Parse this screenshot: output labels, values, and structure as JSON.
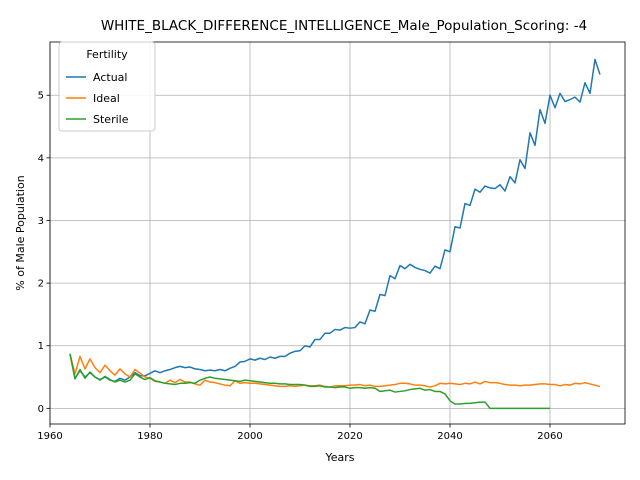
{
  "chart_data": {
    "type": "line",
    "title": "WHITE_BLACK_DIFFERENCE_INTELLIGENCE_Male_Population_Scoring: -4",
    "xlabel": "Years",
    "ylabel": "% of Male Population",
    "xlim": [
      1960,
      2075
    ],
    "ylim": [
      -0.25,
      5.85
    ],
    "xticks": [
      1960,
      1980,
      2000,
      2020,
      2040,
      2060
    ],
    "yticks": [
      0,
      1,
      2,
      3,
      4,
      5
    ],
    "grid": true,
    "legend": {
      "title": "Fertility",
      "placement": "top-left"
    },
    "series": [
      {
        "name": "Actual",
        "color": "#1f77b4",
        "points": [
          [
            1964,
            0.87
          ],
          [
            1965,
            0.48
          ],
          [
            1966,
            0.6
          ],
          [
            1967,
            0.5
          ],
          [
            1968,
            0.57
          ],
          [
            1969,
            0.5
          ],
          [
            1970,
            0.46
          ],
          [
            1971,
            0.5
          ],
          [
            1972,
            0.45
          ],
          [
            1973,
            0.43
          ],
          [
            1974,
            0.48
          ],
          [
            1975,
            0.45
          ],
          [
            1976,
            0.5
          ],
          [
            1977,
            0.57
          ],
          [
            1978,
            0.52
          ],
          [
            1979,
            0.52
          ],
          [
            1980,
            0.56
          ],
          [
            1981,
            0.6
          ],
          [
            1982,
            0.57
          ],
          [
            1983,
            0.6
          ],
          [
            1984,
            0.62
          ],
          [
            1985,
            0.65
          ],
          [
            1986,
            0.67
          ],
          [
            1987,
            0.65
          ],
          [
            1988,
            0.66
          ],
          [
            1989,
            0.63
          ],
          [
            1990,
            0.62
          ],
          [
            1991,
            0.6
          ],
          [
            1992,
            0.61
          ],
          [
            1993,
            0.6
          ],
          [
            1994,
            0.62
          ],
          [
            1995,
            0.6
          ],
          [
            1996,
            0.64
          ],
          [
            1997,
            0.67
          ],
          [
            1998,
            0.74
          ],
          [
            1999,
            0.75
          ],
          [
            2000,
            0.79
          ],
          [
            2001,
            0.77
          ],
          [
            2002,
            0.8
          ],
          [
            2003,
            0.78
          ],
          [
            2004,
            0.82
          ],
          [
            2005,
            0.8
          ],
          [
            2006,
            0.83
          ],
          [
            2007,
            0.83
          ],
          [
            2008,
            0.88
          ],
          [
            2009,
            0.91
          ],
          [
            2010,
            0.92
          ],
          [
            2011,
            1.0
          ],
          [
            2012,
            0.98
          ],
          [
            2013,
            1.1
          ],
          [
            2014,
            1.1
          ],
          [
            2015,
            1.2
          ],
          [
            2016,
            1.2
          ],
          [
            2017,
            1.26
          ],
          [
            2018,
            1.25
          ],
          [
            2019,
            1.29
          ],
          [
            2020,
            1.28
          ],
          [
            2021,
            1.29
          ],
          [
            2022,
            1.38
          ],
          [
            2023,
            1.35
          ],
          [
            2024,
            1.57
          ],
          [
            2025,
            1.55
          ],
          [
            2026,
            1.82
          ],
          [
            2027,
            1.8
          ],
          [
            2028,
            2.12
          ],
          [
            2029,
            2.07
          ],
          [
            2030,
            2.28
          ],
          [
            2031,
            2.23
          ],
          [
            2032,
            2.3
          ],
          [
            2033,
            2.25
          ],
          [
            2034,
            2.22
          ],
          [
            2035,
            2.2
          ],
          [
            2036,
            2.16
          ],
          [
            2037,
            2.27
          ],
          [
            2038,
            2.23
          ],
          [
            2039,
            2.53
          ],
          [
            2040,
            2.5
          ],
          [
            2041,
            2.9
          ],
          [
            2042,
            2.88
          ],
          [
            2043,
            3.27
          ],
          [
            2044,
            3.24
          ],
          [
            2045,
            3.5
          ],
          [
            2046,
            3.45
          ],
          [
            2047,
            3.55
          ],
          [
            2048,
            3.52
          ],
          [
            2049,
            3.51
          ],
          [
            2050,
            3.57
          ],
          [
            2051,
            3.47
          ],
          [
            2052,
            3.7
          ],
          [
            2053,
            3.6
          ],
          [
            2054,
            3.97
          ],
          [
            2055,
            3.83
          ],
          [
            2056,
            4.4
          ],
          [
            2057,
            4.2
          ],
          [
            2058,
            4.77
          ],
          [
            2059,
            4.55
          ],
          [
            2060,
            5.0
          ],
          [
            2061,
            4.8
          ],
          [
            2062,
            5.03
          ],
          [
            2063,
            4.9
          ],
          [
            2064,
            4.93
          ],
          [
            2065,
            4.97
          ],
          [
            2066,
            4.89
          ],
          [
            2067,
            5.2
          ],
          [
            2068,
            5.03
          ],
          [
            2069,
            5.57
          ],
          [
            2070,
            5.33
          ]
        ]
      },
      {
        "name": "Ideal",
        "color": "#ff7f0e",
        "points": [
          [
            1964,
            0.87
          ],
          [
            1965,
            0.55
          ],
          [
            1966,
            0.83
          ],
          [
            1967,
            0.63
          ],
          [
            1968,
            0.79
          ],
          [
            1969,
            0.65
          ],
          [
            1970,
            0.57
          ],
          [
            1971,
            0.69
          ],
          [
            1972,
            0.6
          ],
          [
            1973,
            0.53
          ],
          [
            1974,
            0.63
          ],
          [
            1975,
            0.55
          ],
          [
            1976,
            0.5
          ],
          [
            1977,
            0.62
          ],
          [
            1978,
            0.56
          ],
          [
            1979,
            0.5
          ],
          [
            1980,
            0.48
          ],
          [
            1981,
            0.43
          ],
          [
            1982,
            0.42
          ],
          [
            1983,
            0.4
          ],
          [
            1984,
            0.45
          ],
          [
            1985,
            0.41
          ],
          [
            1986,
            0.46
          ],
          [
            1987,
            0.42
          ],
          [
            1988,
            0.42
          ],
          [
            1989,
            0.39
          ],
          [
            1990,
            0.37
          ],
          [
            1991,
            0.45
          ],
          [
            1992,
            0.42
          ],
          [
            1993,
            0.41
          ],
          [
            1994,
            0.39
          ],
          [
            1995,
            0.37
          ],
          [
            1996,
            0.36
          ],
          [
            1997,
            0.44
          ],
          [
            1998,
            0.4
          ],
          [
            1999,
            0.41
          ],
          [
            2000,
            0.4
          ],
          [
            2001,
            0.4
          ],
          [
            2002,
            0.39
          ],
          [
            2003,
            0.38
          ],
          [
            2004,
            0.37
          ],
          [
            2005,
            0.36
          ],
          [
            2006,
            0.35
          ],
          [
            2007,
            0.35
          ],
          [
            2008,
            0.36
          ],
          [
            2009,
            0.35
          ],
          [
            2010,
            0.36
          ],
          [
            2011,
            0.37
          ],
          [
            2012,
            0.36
          ],
          [
            2013,
            0.36
          ],
          [
            2014,
            0.37
          ],
          [
            2015,
            0.35
          ],
          [
            2016,
            0.34
          ],
          [
            2017,
            0.36
          ],
          [
            2018,
            0.36
          ],
          [
            2019,
            0.36
          ],
          [
            2020,
            0.37
          ],
          [
            2021,
            0.37
          ],
          [
            2022,
            0.38
          ],
          [
            2023,
            0.36
          ],
          [
            2024,
            0.37
          ],
          [
            2025,
            0.35
          ],
          [
            2026,
            0.35
          ],
          [
            2027,
            0.36
          ],
          [
            2028,
            0.37
          ],
          [
            2029,
            0.38
          ],
          [
            2030,
            0.4
          ],
          [
            2031,
            0.4
          ],
          [
            2032,
            0.39
          ],
          [
            2033,
            0.37
          ],
          [
            2034,
            0.37
          ],
          [
            2035,
            0.36
          ],
          [
            2036,
            0.34
          ],
          [
            2037,
            0.36
          ],
          [
            2038,
            0.4
          ],
          [
            2039,
            0.39
          ],
          [
            2040,
            0.4
          ],
          [
            2041,
            0.39
          ],
          [
            2042,
            0.38
          ],
          [
            2043,
            0.4
          ],
          [
            2044,
            0.39
          ],
          [
            2045,
            0.42
          ],
          [
            2046,
            0.39
          ],
          [
            2047,
            0.43
          ],
          [
            2048,
            0.41
          ],
          [
            2049,
            0.41
          ],
          [
            2050,
            0.4
          ],
          [
            2051,
            0.38
          ],
          [
            2052,
            0.37
          ],
          [
            2053,
            0.37
          ],
          [
            2054,
            0.36
          ],
          [
            2055,
            0.37
          ],
          [
            2056,
            0.37
          ],
          [
            2057,
            0.38
          ],
          [
            2058,
            0.39
          ],
          [
            2059,
            0.39
          ],
          [
            2060,
            0.38
          ],
          [
            2061,
            0.38
          ],
          [
            2062,
            0.36
          ],
          [
            2063,
            0.38
          ],
          [
            2064,
            0.37
          ],
          [
            2065,
            0.4
          ],
          [
            2066,
            0.39
          ],
          [
            2067,
            0.41
          ],
          [
            2068,
            0.39
          ],
          [
            2069,
            0.37
          ],
          [
            2070,
            0.35
          ]
        ]
      },
      {
        "name": "Sterile",
        "color": "#2ca02c",
        "points": [
          [
            1964,
            0.87
          ],
          [
            1965,
            0.47
          ],
          [
            1966,
            0.62
          ],
          [
            1967,
            0.48
          ],
          [
            1968,
            0.58
          ],
          [
            1969,
            0.5
          ],
          [
            1970,
            0.45
          ],
          [
            1971,
            0.51
          ],
          [
            1972,
            0.46
          ],
          [
            1973,
            0.42
          ],
          [
            1974,
            0.45
          ],
          [
            1975,
            0.42
          ],
          [
            1976,
            0.45
          ],
          [
            1977,
            0.55
          ],
          [
            1978,
            0.5
          ],
          [
            1979,
            0.46
          ],
          [
            1980,
            0.49
          ],
          [
            1981,
            0.44
          ],
          [
            1982,
            0.42
          ],
          [
            1983,
            0.4
          ],
          [
            1984,
            0.39
          ],
          [
            1985,
            0.38
          ],
          [
            1986,
            0.4
          ],
          [
            1987,
            0.4
          ],
          [
            1988,
            0.41
          ],
          [
            1989,
            0.4
          ],
          [
            1990,
            0.45
          ],
          [
            1991,
            0.48
          ],
          [
            1992,
            0.5
          ],
          [
            1993,
            0.48
          ],
          [
            1994,
            0.47
          ],
          [
            1995,
            0.46
          ],
          [
            1996,
            0.45
          ],
          [
            1997,
            0.44
          ],
          [
            1998,
            0.43
          ],
          [
            1999,
            0.45
          ],
          [
            2000,
            0.44
          ],
          [
            2001,
            0.43
          ],
          [
            2002,
            0.42
          ],
          [
            2003,
            0.41
          ],
          [
            2004,
            0.4
          ],
          [
            2005,
            0.4
          ],
          [
            2006,
            0.39
          ],
          [
            2007,
            0.39
          ],
          [
            2008,
            0.38
          ],
          [
            2009,
            0.38
          ],
          [
            2010,
            0.38
          ],
          [
            2011,
            0.37
          ],
          [
            2012,
            0.35
          ],
          [
            2013,
            0.35
          ],
          [
            2014,
            0.36
          ],
          [
            2015,
            0.34
          ],
          [
            2016,
            0.34
          ],
          [
            2017,
            0.33
          ],
          [
            2018,
            0.34
          ],
          [
            2019,
            0.34
          ],
          [
            2020,
            0.32
          ],
          [
            2021,
            0.33
          ],
          [
            2022,
            0.33
          ],
          [
            2023,
            0.32
          ],
          [
            2024,
            0.33
          ],
          [
            2025,
            0.32
          ],
          [
            2026,
            0.27
          ],
          [
            2027,
            0.28
          ],
          [
            2028,
            0.29
          ],
          [
            2029,
            0.26
          ],
          [
            2030,
            0.27
          ],
          [
            2031,
            0.28
          ],
          [
            2032,
            0.3
          ],
          [
            2033,
            0.31
          ],
          [
            2034,
            0.32
          ],
          [
            2035,
            0.29
          ],
          [
            2036,
            0.3
          ],
          [
            2037,
            0.27
          ],
          [
            2038,
            0.27
          ],
          [
            2039,
            0.23
          ],
          [
            2040,
            0.12
          ],
          [
            2041,
            0.07
          ],
          [
            2042,
            0.07
          ],
          [
            2043,
            0.08
          ],
          [
            2044,
            0.08
          ],
          [
            2045,
            0.09
          ],
          [
            2046,
            0.1
          ],
          [
            2047,
            0.1
          ],
          [
            2048,
            0.0
          ],
          [
            2050,
            0.0
          ],
          [
            2055,
            0.0
          ],
          [
            2060,
            0.0
          ]
        ]
      }
    ]
  }
}
